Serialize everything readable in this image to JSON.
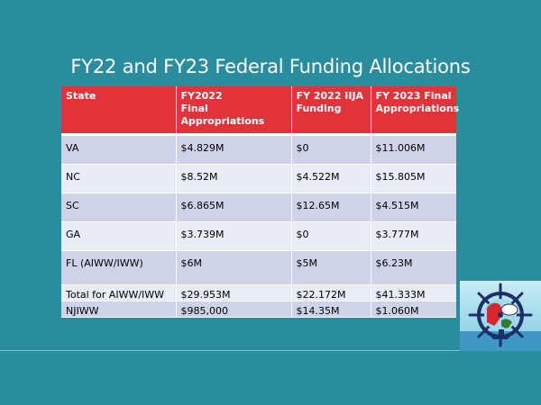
{
  "slide": {
    "title": "FY22 and FY23 Federal Funding Allocations"
  },
  "table": {
    "headers": [
      {
        "line1": "State",
        "line2": ""
      },
      {
        "line1": "FY2022",
        "line2": "Final Appropriations"
      },
      {
        "line1": "FY 2022 IIJA",
        "line2": "Funding"
      },
      {
        "line1": "FY 2023 Final",
        "line2": "Appropriations"
      }
    ],
    "rows": [
      {
        "state": "VA",
        "fy2022": "$4.829M",
        "iija": "$0",
        "fy2023": "$11.006M"
      },
      {
        "state": "NC",
        "fy2022": "$8.52M",
        "iija": "$4.522M",
        "fy2023": "$15.805M"
      },
      {
        "state": "SC",
        "fy2022": "$6.865M",
        "iija": "$12.65M",
        "fy2023": "$4.515M"
      },
      {
        "state": "GA",
        "fy2022": "$3.739M",
        "iija": "$0",
        "fy2023": "$3.777M"
      },
      {
        "state": "FL (AIWW/IWW)",
        "fy2022": "$6M",
        "iija": "$5M",
        "fy2023": "$6.23M"
      },
      {
        "state": "Total for AIWW/IWW",
        "fy2022": "$29.953M",
        "iija": "$22.172M",
        "fy2023": "$41.333M"
      },
      {
        "state": "NJIWW",
        "fy2022": "$985,000",
        "iija": "$14.35M",
        "fy2023": "$1.060M"
      }
    ]
  },
  "colors": {
    "background": "#2A8D9E",
    "header": "#E2333A",
    "row_dark": "#CFD3E9",
    "row_light": "#E9EBF5"
  },
  "logo": {
    "icon": "ship-wheel-logo-icon"
  }
}
